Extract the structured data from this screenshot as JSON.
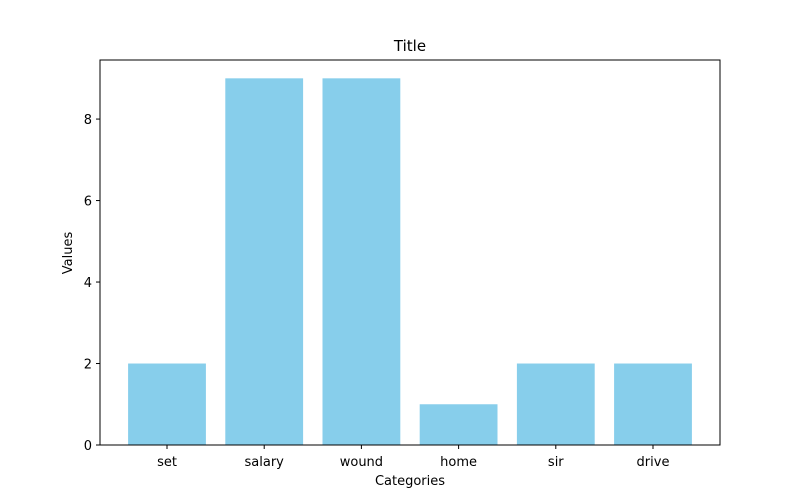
{
  "chart_data": {
    "type": "bar",
    "title": "Title",
    "xlabel": "Categories",
    "ylabel": "Values",
    "categories": [
      "set",
      "salary",
      "wound",
      "home",
      "sir",
      "drive"
    ],
    "values": [
      2,
      9,
      9,
      1,
      2,
      2
    ],
    "ylim": [
      0,
      9.45
    ],
    "yticks": [
      0,
      2,
      4,
      6,
      8
    ],
    "grid": false,
    "legend": "none",
    "bar_color": "#87ceeb"
  }
}
